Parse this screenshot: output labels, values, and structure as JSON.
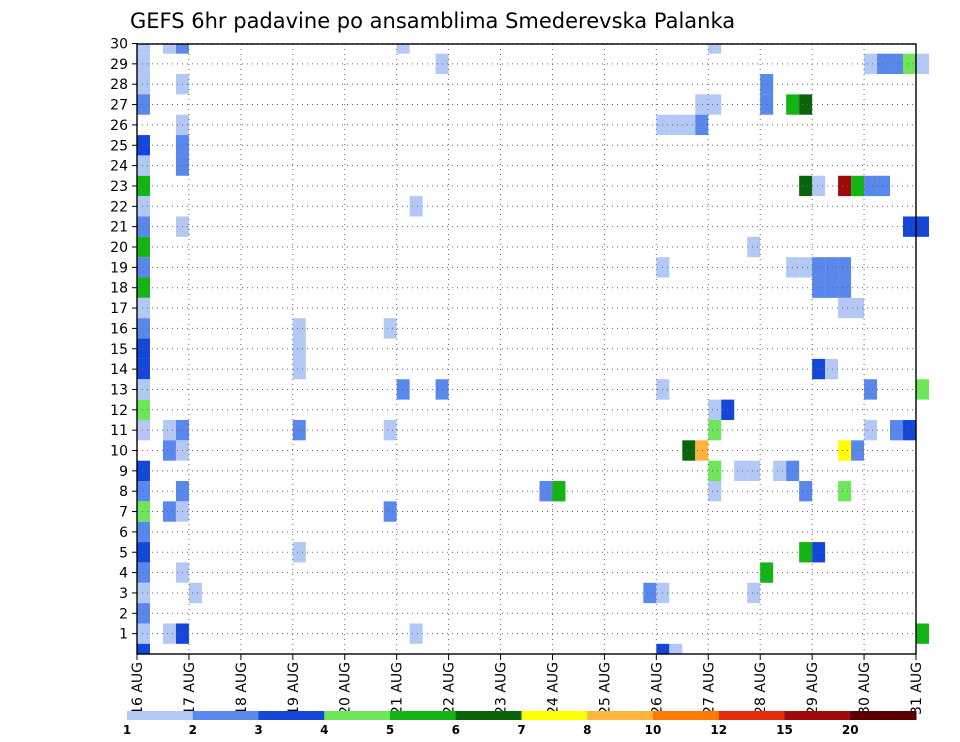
{
  "chart_data": {
    "type": "heatmap",
    "title": "GEFS 6hr padavine po ansamblima Smederevska Palanka",
    "x_ticks": [
      "16 AUG",
      "17 AUG",
      "18 AUG",
      "19 AUG",
      "20 AUG",
      "21 AUG",
      "22 AUG",
      "23 AUG",
      "24 AUG",
      "25 AUG",
      "26 AUG",
      "27 AUG",
      "28 AUG",
      "29 AUG",
      "30 AUG",
      "31 AUG"
    ],
    "y_ticks": [
      "1",
      "2",
      "3",
      "4",
      "5",
      "6",
      "7",
      "8",
      "9",
      "10",
      "11",
      "12",
      "13",
      "14",
      "15",
      "16",
      "17",
      "18",
      "19",
      "20",
      "21",
      "22",
      "23",
      "24",
      "25",
      "26",
      "27",
      "28",
      "29",
      "30"
    ],
    "grid": true,
    "levels": [
      "1",
      "2",
      "3",
      "4",
      "5",
      "6",
      "7",
      "8",
      "10",
      "12",
      "15",
      "20"
    ],
    "colorbar_colors": [
      "#b4c8f5",
      "#5a87eb",
      "#1446d7",
      "#6ee65a",
      "#14b414",
      "#0a640a",
      "#ffff00",
      "#ffb43c",
      "#ff7a00",
      "#e62d0a",
      "#a00a0a",
      "#5a0000"
    ],
    "cells": [
      {
        "member": 30,
        "t": 0,
        "v": 1.5
      },
      {
        "member": 30,
        "t": 2,
        "v": 1.5
      },
      {
        "member": 30,
        "t": 3,
        "v": 2.5
      },
      {
        "member": 30,
        "t": 20,
        "v": 1.5
      },
      {
        "member": 30,
        "t": 44,
        "v": 1.5
      },
      {
        "member": 29,
        "t": 0,
        "v": 1.5
      },
      {
        "member": 29,
        "t": 23,
        "v": 1.5
      },
      {
        "member": 29,
        "t": 56,
        "v": 1.5
      },
      {
        "member": 29,
        "t": 57,
        "v": 2.5
      },
      {
        "member": 29,
        "t": 58,
        "v": 2.5
      },
      {
        "member": 29,
        "t": 59,
        "v": 4.5
      },
      {
        "member": 29,
        "t": 60,
        "v": 1.5
      },
      {
        "member": 28,
        "t": 0,
        "v": 1.5
      },
      {
        "member": 28,
        "t": 3,
        "v": 1.5
      },
      {
        "member": 28,
        "t": 48,
        "v": 2.5
      },
      {
        "member": 27,
        "t": 0,
        "v": 2.5
      },
      {
        "member": 27,
        "t": 43,
        "v": 1.5
      },
      {
        "member": 27,
        "t": 44,
        "v": 1.5
      },
      {
        "member": 27,
        "t": 48,
        "v": 2.5
      },
      {
        "member": 27,
        "t": 50,
        "v": 5.5
      },
      {
        "member": 27,
        "t": 51,
        "v": 6.5
      },
      {
        "member": 26,
        "t": 3,
        "v": 1.5
      },
      {
        "member": 26,
        "t": 40,
        "v": 1.5
      },
      {
        "member": 26,
        "t": 41,
        "v": 1.5
      },
      {
        "member": 26,
        "t": 42,
        "v": 1.5
      },
      {
        "member": 26,
        "t": 43,
        "v": 2.5
      },
      {
        "member": 25,
        "t": 0,
        "v": 3.5
      },
      {
        "member": 25,
        "t": 3,
        "v": 2.5
      },
      {
        "member": 24,
        "t": 0,
        "v": 1.5
      },
      {
        "member": 24,
        "t": 3,
        "v": 2.5
      },
      {
        "member": 23,
        "t": 0,
        "v": 5.5
      },
      {
        "member": 23,
        "t": 51,
        "v": 6.5
      },
      {
        "member": 23,
        "t": 52,
        "v": 1.5
      },
      {
        "member": 23,
        "t": 54,
        "v": 15.5
      },
      {
        "member": 23,
        "t": 55,
        "v": 5.5
      },
      {
        "member": 23,
        "t": 56,
        "v": 2.5
      },
      {
        "member": 23,
        "t": 57,
        "v": 2.5
      },
      {
        "member": 22,
        "t": 0,
        "v": 1.5
      },
      {
        "member": 22,
        "t": 21,
        "v": 1.5
      },
      {
        "member": 21,
        "t": 0,
        "v": 2.5
      },
      {
        "member": 21,
        "t": 3,
        "v": 1.5
      },
      {
        "member": 21,
        "t": 59,
        "v": 3.5
      },
      {
        "member": 21,
        "t": 60,
        "v": 3.5
      },
      {
        "member": 20,
        "t": 0,
        "v": 5.5
      },
      {
        "member": 20,
        "t": 47,
        "v": 1.5
      },
      {
        "member": 19,
        "t": 0,
        "v": 2.5
      },
      {
        "member": 19,
        "t": 40,
        "v": 1.5
      },
      {
        "member": 19,
        "t": 50,
        "v": 1.5
      },
      {
        "member": 19,
        "t": 51,
        "v": 1.5
      },
      {
        "member": 19,
        "t": 52,
        "v": 2.5
      },
      {
        "member": 19,
        "t": 53,
        "v": 2.5
      },
      {
        "member": 19,
        "t": 54,
        "v": 2.5
      },
      {
        "member": 18,
        "t": 0,
        "v": 5.5
      },
      {
        "member": 18,
        "t": 52,
        "v": 2.5
      },
      {
        "member": 18,
        "t": 53,
        "v": 2.5
      },
      {
        "member": 18,
        "t": 54,
        "v": 2.5
      },
      {
        "member": 17,
        "t": 0,
        "v": 1.5
      },
      {
        "member": 17,
        "t": 54,
        "v": 1.5
      },
      {
        "member": 17,
        "t": 55,
        "v": 1.5
      },
      {
        "member": 16,
        "t": 0,
        "v": 2.5
      },
      {
        "member": 16,
        "t": 12,
        "v": 1.5
      },
      {
        "member": 16,
        "t": 19,
        "v": 1.5
      },
      {
        "member": 15,
        "t": 0,
        "v": 3.5
      },
      {
        "member": 15,
        "t": 12,
        "v": 1.5
      },
      {
        "member": 14,
        "t": 0,
        "v": 3.5
      },
      {
        "member": 14,
        "t": 12,
        "v": 1.5
      },
      {
        "member": 14,
        "t": 52,
        "v": 3.5
      },
      {
        "member": 14,
        "t": 53,
        "v": 1.5
      },
      {
        "member": 13,
        "t": 0,
        "v": 1.5
      },
      {
        "member": 13,
        "t": 20,
        "v": 2.5
      },
      {
        "member": 13,
        "t": 23,
        "v": 2.5
      },
      {
        "member": 13,
        "t": 40,
        "v": 1.5
      },
      {
        "member": 13,
        "t": 56,
        "v": 2.5
      },
      {
        "member": 13,
        "t": 60,
        "v": 4.5
      },
      {
        "member": 12,
        "t": 0,
        "v": 4.5
      },
      {
        "member": 12,
        "t": 44,
        "v": 1.5
      },
      {
        "member": 12,
        "t": 45,
        "v": 3.5
      },
      {
        "member": 11,
        "t": 0,
        "v": 1.5
      },
      {
        "member": 11,
        "t": 2,
        "v": 1.5
      },
      {
        "member": 11,
        "t": 3,
        "v": 2.5
      },
      {
        "member": 11,
        "t": 12,
        "v": 2.5
      },
      {
        "member": 11,
        "t": 19,
        "v": 1.5
      },
      {
        "member": 11,
        "t": 44,
        "v": 4.5
      },
      {
        "member": 11,
        "t": 56,
        "v": 1.5
      },
      {
        "member": 11,
        "t": 58,
        "v": 2.5
      },
      {
        "member": 11,
        "t": 59,
        "v": 3.5
      },
      {
        "member": 10,
        "t": 2,
        "v": 2.5
      },
      {
        "member": 10,
        "t": 3,
        "v": 1.5
      },
      {
        "member": 10,
        "t": 42,
        "v": 6.5
      },
      {
        "member": 10,
        "t": 43,
        "v": 8.5
      },
      {
        "member": 10,
        "t": 54,
        "v": 7.5
      },
      {
        "member": 10,
        "t": 55,
        "v": 2.5
      },
      {
        "member": 9,
        "t": 0,
        "v": 3.5
      },
      {
        "member": 9,
        "t": 44,
        "v": 4.5
      },
      {
        "member": 9,
        "t": 46,
        "v": 1.5
      },
      {
        "member": 9,
        "t": 47,
        "v": 1.5
      },
      {
        "member": 9,
        "t": 49,
        "v": 1.5
      },
      {
        "member": 9,
        "t": 50,
        "v": 2.5
      },
      {
        "member": 8,
        "t": 0,
        "v": 2.5
      },
      {
        "member": 8,
        "t": 3,
        "v": 2.5
      },
      {
        "member": 8,
        "t": 31,
        "v": 2.5
      },
      {
        "member": 8,
        "t": 32,
        "v": 5.5
      },
      {
        "member": 8,
        "t": 44,
        "v": 1.5
      },
      {
        "member": 8,
        "t": 51,
        "v": 2.5
      },
      {
        "member": 8,
        "t": 54,
        "v": 4.5
      },
      {
        "member": 7,
        "t": 0,
        "v": 4.5
      },
      {
        "member": 7,
        "t": 2,
        "v": 2.5
      },
      {
        "member": 7,
        "t": 3,
        "v": 1.5
      },
      {
        "member": 7,
        "t": 19,
        "v": 2.5
      },
      {
        "member": 6,
        "t": 0,
        "v": 2.5
      },
      {
        "member": 5,
        "t": 0,
        "v": 3.5
      },
      {
        "member": 5,
        "t": 12,
        "v": 1.5
      },
      {
        "member": 5,
        "t": 51,
        "v": 5.5
      },
      {
        "member": 5,
        "t": 52,
        "v": 3.5
      },
      {
        "member": 4,
        "t": 0,
        "v": 2.5
      },
      {
        "member": 4,
        "t": 3,
        "v": 1.5
      },
      {
        "member": 4,
        "t": 48,
        "v": 5.5
      },
      {
        "member": 3,
        "t": 0,
        "v": 1.5
      },
      {
        "member": 3,
        "t": 4,
        "v": 1.5
      },
      {
        "member": 3,
        "t": 39,
        "v": 2.5
      },
      {
        "member": 3,
        "t": 40,
        "v": 1.5
      },
      {
        "member": 3,
        "t": 47,
        "v": 1.5
      },
      {
        "member": 2,
        "t": 0,
        "v": 2.5
      },
      {
        "member": 1,
        "t": 0,
        "v": 1.5
      },
      {
        "member": 1,
        "t": 2,
        "v": 1.5
      },
      {
        "member": 1,
        "t": 3,
        "v": 3.5
      },
      {
        "member": 1,
        "t": 21,
        "v": 1.5
      },
      {
        "member": 1,
        "t": 60,
        "v": 5.5
      },
      {
        "member": 0,
        "t": 0,
        "v": 3.5
      },
      {
        "member": 0,
        "t": 40,
        "v": 3.5
      },
      {
        "member": 0,
        "t": 41,
        "v": 1.5
      }
    ]
  }
}
